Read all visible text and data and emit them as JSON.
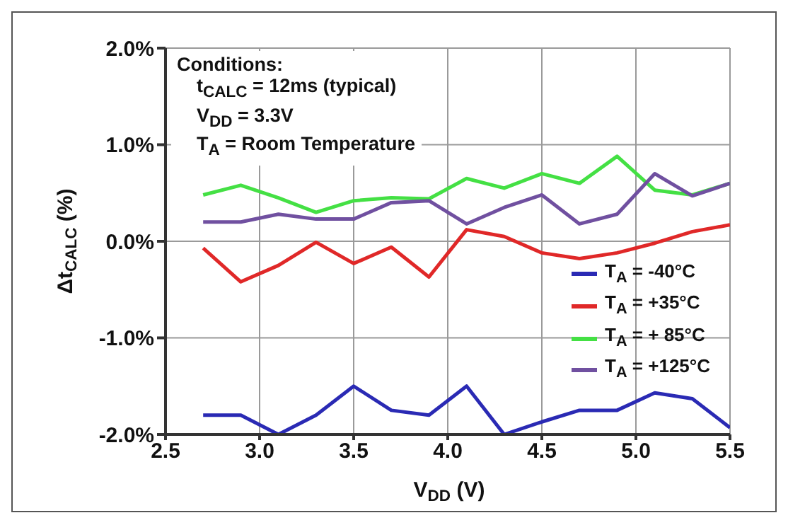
{
  "chart_data": {
    "type": "line",
    "xlabel": "V$_{DD}$ (V)",
    "ylabel": "Δt$_{CALC}$ (%)",
    "x": [
      2.7,
      2.9,
      3.1,
      3.3,
      3.5,
      3.7,
      3.9,
      4.1,
      4.3,
      4.5,
      4.7,
      4.9,
      5.1,
      5.3,
      5.5
    ],
    "series": [
      {
        "name": "T$_{A}$ = -40°C",
        "color": "#2a2ab4",
        "values": [
          -1.8,
          -1.8,
          -2.0,
          -1.8,
          -1.5,
          -1.75,
          -1.8,
          -1.5,
          -2.0,
          -1.87,
          -1.75,
          -1.75,
          -1.57,
          -1.63,
          -1.93
        ]
      },
      {
        "name": "T$_{A}$ = +35°C",
        "color": "#e02828",
        "values": [
          -0.07,
          -0.42,
          -0.25,
          -0.01,
          -0.23,
          -0.06,
          -0.37,
          0.12,
          0.05,
          -0.12,
          -0.18,
          -0.12,
          -0.02,
          0.1,
          0.17
        ]
      },
      {
        "name": "T$_{A}$ = + 85°C",
        "color": "#44e044",
        "values": [
          0.48,
          0.58,
          0.45,
          0.3,
          0.42,
          0.45,
          0.44,
          0.65,
          0.55,
          0.7,
          0.6,
          0.88,
          0.53,
          0.48,
          0.6
        ]
      },
      {
        "name": "T$_{A}$ = +125°C",
        "color": "#7050a0",
        "values": [
          0.2,
          0.2,
          0.28,
          0.23,
          0.23,
          0.4,
          0.42,
          0.18,
          0.35,
          0.48,
          0.18,
          0.28,
          0.7,
          0.47,
          0.6
        ]
      }
    ],
    "xlim": [
      2.5,
      5.5
    ],
    "xticks": [
      {
        "value": 2.5,
        "label": "2.5"
      },
      {
        "value": 3,
        "label": "3.0"
      },
      {
        "value": 3.5,
        "label": "3.5"
      },
      {
        "value": 4,
        "label": "4.0"
      },
      {
        "value": 4.5,
        "label": "4.5"
      },
      {
        "value": 5,
        "label": "5.0"
      },
      {
        "value": 5.5,
        "label": "5.5"
      }
    ],
    "ylim": [
      -2,
      2
    ],
    "yticks": [
      {
        "value": -2,
        "label": "-2.0%"
      },
      {
        "value": -1,
        "label": "-1.0%"
      },
      {
        "value": 0,
        "label": "0.0%"
      },
      {
        "value": 1,
        "label": "1.0%"
      },
      {
        "value": 2,
        "label": "2.0%"
      }
    ],
    "annotations": [
      "Conditions:",
      "t$_{CALC}$ = 12ms (typical)",
      "V$_{DD}$ = 3.3V",
      "T$_{A}$ = Room Temperature"
    ],
    "grid": true,
    "legend": "bottom right",
    "marker": "none",
    "line_style": "solid"
  }
}
